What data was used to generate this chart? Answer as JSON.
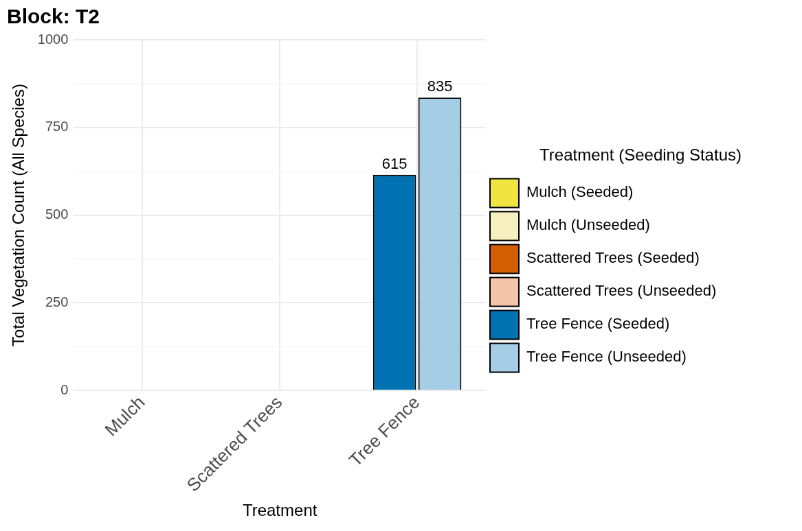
{
  "chart_data": {
    "type": "bar",
    "title": "Block: T2",
    "xlabel": "Treatment",
    "ylabel": "Total Vegetation Count (All Species)",
    "legend_title": "Treatment (Seeding Status)",
    "categories": [
      "Mulch",
      "Scattered Trees",
      "Tree Fence"
    ],
    "series": [
      {
        "name": "Mulch (Seeded)",
        "color": "#f0e442",
        "values": [
          null,
          null,
          null
        ]
      },
      {
        "name": "Mulch (Unseeded)",
        "color": "#f6f0c0",
        "values": [
          null,
          null,
          null
        ]
      },
      {
        "name": "Scattered Trees (Seeded)",
        "color": "#d55e00",
        "values": [
          null,
          null,
          null
        ]
      },
      {
        "name": "Scattered Trees (Unseeded)",
        "color": "#f4c4a8",
        "values": [
          null,
          null,
          null
        ]
      },
      {
        "name": "Tree Fence (Seeded)",
        "color": "#0072b2",
        "values": [
          null,
          null,
          615
        ]
      },
      {
        "name": "Tree Fence (Unseeded)",
        "color": "#a6cde6",
        "values": [
          null,
          null,
          835
        ]
      }
    ],
    "ylim": [
      0,
      1000
    ],
    "yticks": [
      0,
      {
        "value": 125,
        "label": null
      },
      250,
      {
        "value": 375,
        "label": null
      },
      500,
      {
        "value": 625,
        "label": null
      },
      750,
      {
        "value": 875,
        "label": null
      },
      1000
    ],
    "grid": true,
    "legend": "right",
    "data_labels": true
  }
}
